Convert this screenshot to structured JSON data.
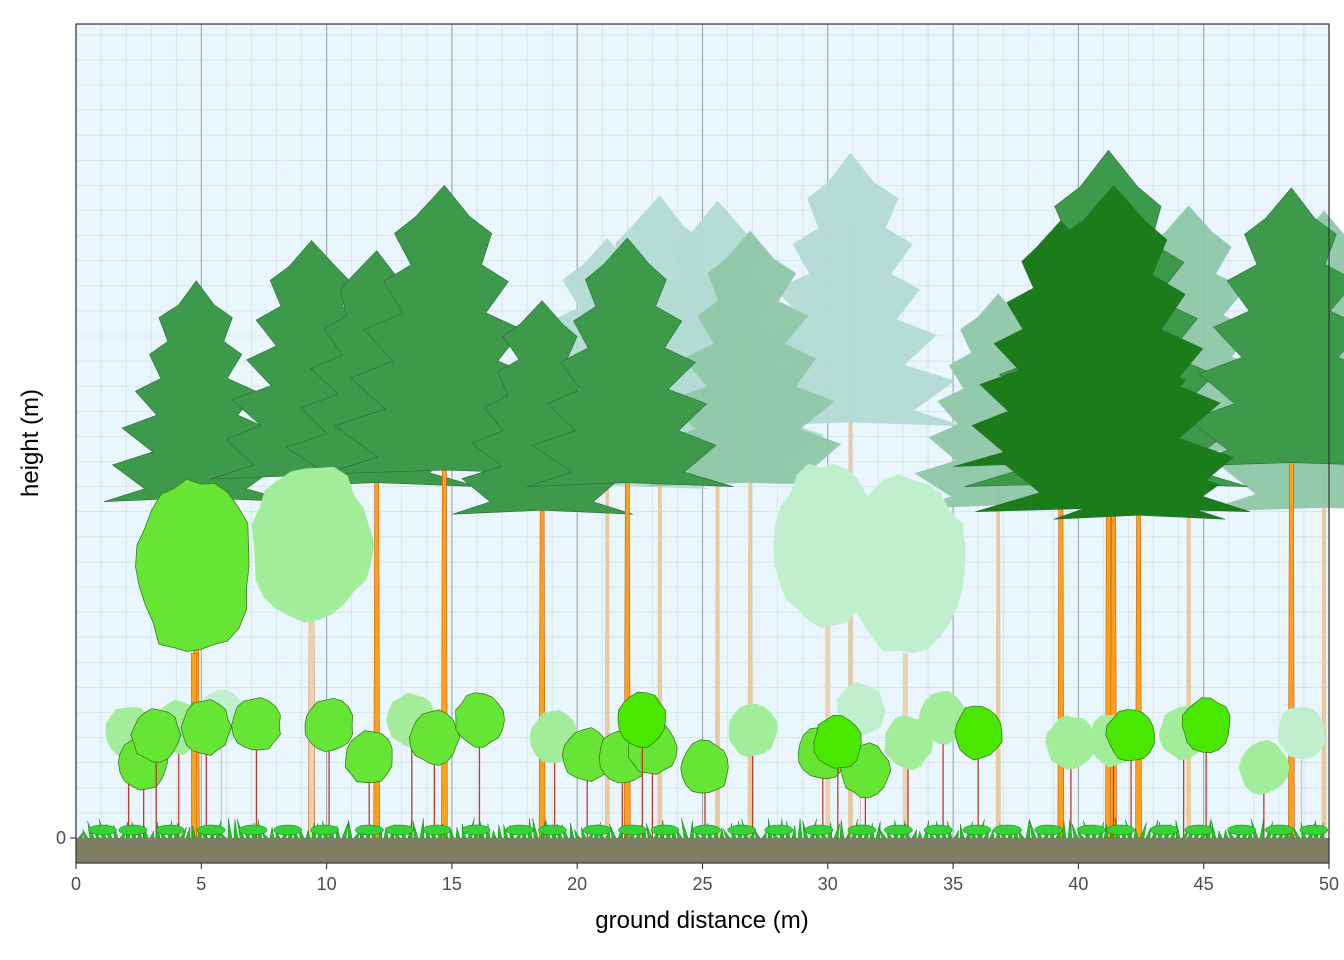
{
  "chart_data": {
    "type": "other",
    "subtype": "forest-stand-profile",
    "xlabel": "ground distance (m)",
    "ylabel": "height (m)",
    "xlim": [
      0,
      50
    ],
    "x_ticks": [
      0,
      5,
      10,
      15,
      20,
      25,
      30,
      35,
      40,
      45,
      50
    ],
    "y_ticks": [
      0
    ],
    "grid": true,
    "legend": "none",
    "colors": {
      "panel_bg": "#eaf6fd",
      "ground": "#7f7f66",
      "grass": "#1fc21f",
      "trunk": "#ff9f1a",
      "conifer_dark": "#1a7d1a",
      "conifer_mid": "#3d9a4a",
      "conifer_light": "#8fc7a8",
      "conifer_pale": "#b2dbd3",
      "broadleaf_bright": "#67e535",
      "broadleaf_light": "#a1ed9a",
      "broadleaf_pale": "#c0efce",
      "sapling": "#4ae800"
    },
    "conifers": [
      {
        "x": 4.8,
        "height": 22.2,
        "crown_base": 13.4,
        "shade": "mid"
      },
      {
        "x": 9.4,
        "height": 23.8,
        "crown_base": 14.3,
        "shade": "mid"
      },
      {
        "x": 12.0,
        "height": 23.4,
        "crown_base": 14.0,
        "shade": "mid"
      },
      {
        "x": 14.7,
        "height": 26.0,
        "crown_base": 14.5,
        "shade": "mid"
      },
      {
        "x": 18.6,
        "height": 21.4,
        "crown_base": 12.9,
        "shade": "mid"
      },
      {
        "x": 21.2,
        "height": 23.9,
        "crown_base": 13.9,
        "shade": "pale"
      },
      {
        "x": 22.0,
        "height": 23.9,
        "crown_base": 14.0,
        "shade": "mid"
      },
      {
        "x": 23.3,
        "height": 25.6,
        "crown_base": 14.1,
        "shade": "pale"
      },
      {
        "x": 25.6,
        "height": 25.4,
        "crown_base": 14.2,
        "shade": "pale"
      },
      {
        "x": 26.9,
        "height": 24.2,
        "crown_base": 14.0,
        "shade": "light"
      },
      {
        "x": 30.9,
        "height": 27.3,
        "crown_base": 16.4,
        "shade": "pale"
      },
      {
        "x": 36.8,
        "height": 21.7,
        "crown_base": 13.1,
        "shade": "light"
      },
      {
        "x": 39.3,
        "height": 24.6,
        "crown_base": 14.8,
        "shade": "dark"
      },
      {
        "x": 41.2,
        "height": 27.4,
        "crown_base": 14.0,
        "shade": "mid"
      },
      {
        "x": 41.4,
        "height": 26.0,
        "crown_base": 13.0,
        "shade": "dark"
      },
      {
        "x": 42.4,
        "height": 21.0,
        "crown_base": 12.7,
        "shade": "dark"
      },
      {
        "x": 44.4,
        "height": 25.2,
        "crown_base": 15.3,
        "shade": "light"
      },
      {
        "x": 48.5,
        "height": 25.9,
        "crown_base": 14.8,
        "shade": "mid"
      },
      {
        "x": 49.8,
        "height": 25.0,
        "crown_base": 13.0,
        "shade": "light"
      }
    ],
    "broadleaf_trees": [
      {
        "x": 4.7,
        "height": 14.4,
        "crown_base": 7.2,
        "width": 4.7,
        "shade": "bright"
      },
      {
        "x": 9.4,
        "height": 14.9,
        "crown_base": 8.6,
        "width": 4.9,
        "shade": "light"
      },
      {
        "x": 30.0,
        "height": 15.0,
        "crown_base": 8.4,
        "width": 4.3,
        "shade": "pale"
      },
      {
        "x": 33.1,
        "height": 14.4,
        "crown_base": 7.2,
        "width": 5.0,
        "shade": "pale"
      }
    ],
    "saplings": [
      {
        "x": 2.1,
        "height": 5.4,
        "shade": "light"
      },
      {
        "x": 2.7,
        "height": 4.2,
        "shade": "bright"
      },
      {
        "x": 3.2,
        "height": 5.3,
        "shade": "bright"
      },
      {
        "x": 4.1,
        "height": 5.6,
        "shade": "light"
      },
      {
        "x": 5.2,
        "height": 5.6,
        "shade": "bright"
      },
      {
        "x": 5.8,
        "height": 6.0,
        "shade": "pale"
      },
      {
        "x": 7.2,
        "height": 5.7,
        "shade": "bright"
      },
      {
        "x": 10.1,
        "height": 5.7,
        "shade": "bright"
      },
      {
        "x": 11.7,
        "height": 4.4,
        "shade": "bright"
      },
      {
        "x": 13.4,
        "height": 5.9,
        "shade": "light"
      },
      {
        "x": 14.3,
        "height": 5.2,
        "shade": "bright"
      },
      {
        "x": 16.1,
        "height": 5.9,
        "shade": "bright"
      },
      {
        "x": 19.1,
        "height": 5.2,
        "shade": "light"
      },
      {
        "x": 20.4,
        "height": 4.5,
        "shade": "bright"
      },
      {
        "x": 21.8,
        "height": 4.4,
        "shade": "bright"
      },
      {
        "x": 22.6,
        "height": 5.9,
        "shade": "sapling"
      },
      {
        "x": 23.0,
        "height": 4.8,
        "shade": "bright"
      },
      {
        "x": 25.1,
        "height": 4.0,
        "shade": "bright"
      },
      {
        "x": 27.0,
        "height": 5.5,
        "shade": "light"
      },
      {
        "x": 29.8,
        "height": 4.6,
        "shade": "bright"
      },
      {
        "x": 30.4,
        "height": 5.0,
        "shade": "sapling"
      },
      {
        "x": 31.3,
        "height": 6.3,
        "shade": "pale"
      },
      {
        "x": 31.5,
        "height": 3.9,
        "shade": "bright"
      },
      {
        "x": 33.2,
        "height": 5.0,
        "shade": "light"
      },
      {
        "x": 34.6,
        "height": 6.0,
        "shade": "light"
      },
      {
        "x": 36.0,
        "height": 5.4,
        "shade": "sapling"
      },
      {
        "x": 39.7,
        "height": 5.0,
        "shade": "light"
      },
      {
        "x": 41.4,
        "height": 5.1,
        "shade": "light"
      },
      {
        "x": 42.1,
        "height": 5.3,
        "shade": "sapling"
      },
      {
        "x": 44.2,
        "height": 5.4,
        "shade": "light"
      },
      {
        "x": 45.1,
        "height": 5.7,
        "shade": "sapling"
      },
      {
        "x": 47.4,
        "height": 4.0,
        "shade": "light"
      },
      {
        "x": 48.9,
        "height": 5.4,
        "shade": "pale"
      }
    ]
  }
}
